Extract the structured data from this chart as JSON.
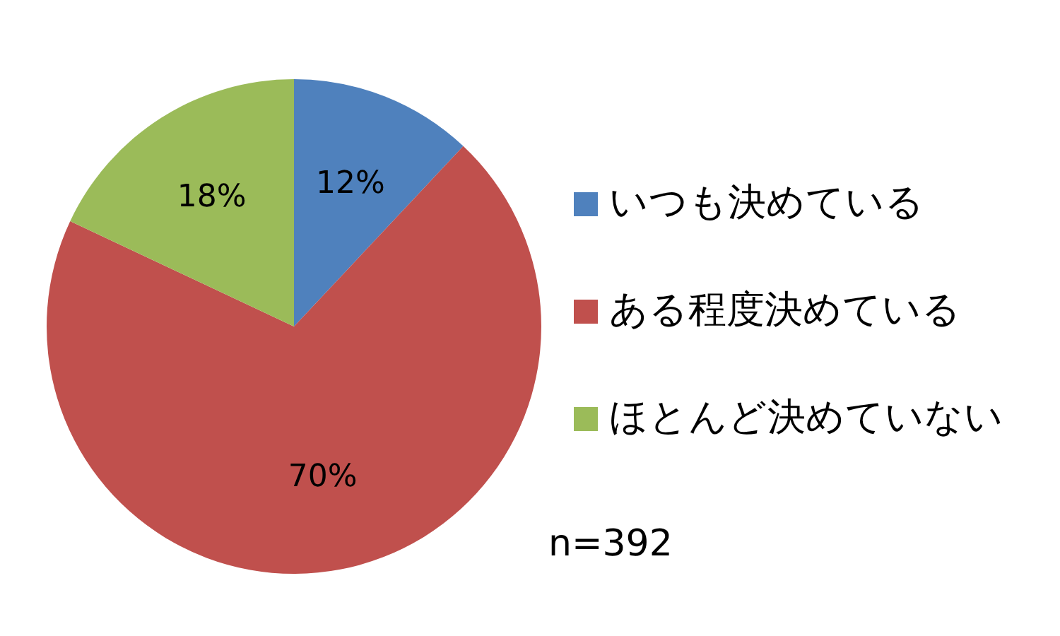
{
  "chart_data": {
    "type": "pie",
    "categories": [
      "いつも決めている",
      "ある程度決めている",
      "ほとんど決めていない"
    ],
    "values": [
      12,
      70,
      18
    ],
    "colors": [
      "#4f81bd",
      "#c0504d",
      "#9bbb59"
    ],
    "value_labels": [
      "12%",
      "70%",
      "18%"
    ],
    "legend": "right",
    "annotations": [
      "n=392"
    ]
  }
}
